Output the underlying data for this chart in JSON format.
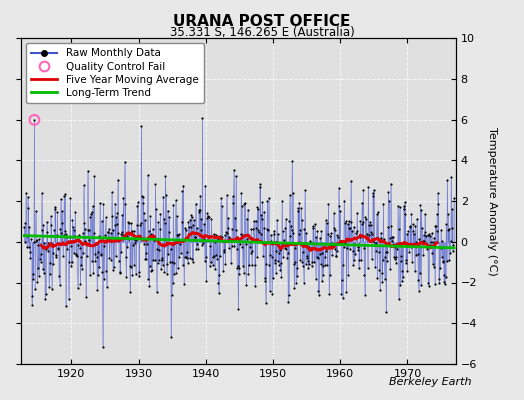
{
  "title": "URANA POST OFFICE",
  "subtitle": "35.331 S, 146.265 E (Australia)",
  "ylabel": "Temperature Anomaly (°C)",
  "attribution": "Berkeley Earth",
  "year_start": 1913,
  "year_end": 1976,
  "ylim": [
    -6,
    10
  ],
  "yticks": [
    -6,
    -4,
    -2,
    0,
    2,
    4,
    6,
    8,
    10
  ],
  "xticks": [
    1920,
    1930,
    1940,
    1950,
    1960,
    1970
  ],
  "background_color": "#e8e8e8",
  "plot_background_color": "#e0e0e0",
  "raw_color": "#4455cc",
  "dot_color": "#000000",
  "qc_fail_color": "#ff66bb",
  "moving_avg_color": "#dd0000",
  "trend_color": "#00bb00",
  "grid_color": "#ffffff",
  "seed": 42,
  "qc_year": 1914.5,
  "spike_1940_year": 1939.5,
  "dip_1925_year": 1924.7
}
